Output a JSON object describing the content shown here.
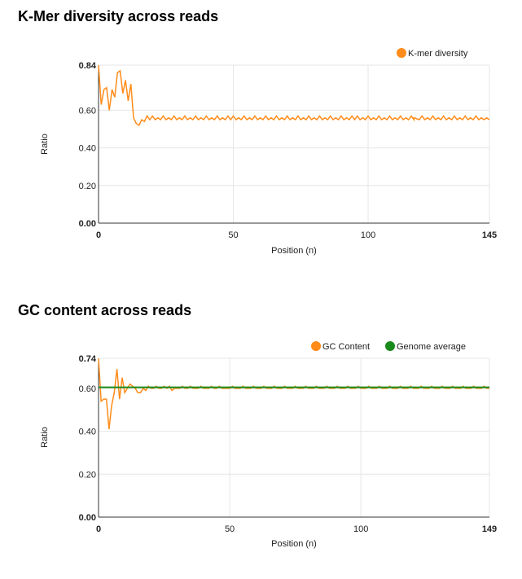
{
  "chart_data": [
    {
      "type": "line",
      "title": "K-Mer diversity across reads",
      "xlabel": "Position (n)",
      "ylabel": "Ratio",
      "xlim": [
        0,
        145
      ],
      "ylim": [
        0,
        0.84
      ],
      "x_ticks": [
        "0",
        "50",
        "100",
        "145"
      ],
      "y_ticks": [
        "0.84",
        "0.60",
        "0.40",
        "0.20",
        "0.00"
      ],
      "grid": true,
      "legend_position": "top-right",
      "series": [
        {
          "name": "K-mer diversity",
          "color": "#ff8c1a",
          "x": [
            0,
            1,
            2,
            3,
            4,
            5,
            6,
            7,
            8,
            9,
            10,
            11,
            12,
            13,
            14,
            15,
            16,
            17,
            18,
            19,
            20,
            21,
            22,
            23,
            24,
            25,
            26,
            27,
            28,
            29,
            30,
            31,
            32,
            33,
            34,
            35,
            36,
            37,
            38,
            39,
            40,
            41,
            42,
            43,
            44,
            45,
            46,
            47,
            48,
            49,
            50,
            51,
            52,
            53,
            54,
            55,
            56,
            57,
            58,
            59,
            60,
            61,
            62,
            63,
            64,
            65,
            66,
            67,
            68,
            69,
            70,
            71,
            72,
            73,
            74,
            75,
            76,
            77,
            78,
            79,
            80,
            81,
            82,
            83,
            84,
            85,
            86,
            87,
            88,
            89,
            90,
            91,
            92,
            93,
            94,
            95,
            96,
            97,
            98,
            99,
            100,
            101,
            102,
            103,
            104,
            105,
            106,
            107,
            108,
            109,
            110,
            111,
            112,
            113,
            114,
            115,
            116,
            117,
            117,
            119,
            120,
            121,
            122,
            123,
            124,
            125,
            126,
            127,
            128,
            129,
            130,
            131,
            132,
            133,
            134,
            135,
            136,
            137,
            138,
            139,
            140,
            141,
            142,
            143,
            144,
            145
          ],
          "values": [
            0.84,
            0.63,
            0.71,
            0.72,
            0.6,
            0.71,
            0.67,
            0.8,
            0.81,
            0.69,
            0.76,
            0.65,
            0.74,
            0.56,
            0.53,
            0.52,
            0.55,
            0.54,
            0.57,
            0.55,
            0.57,
            0.55,
            0.56,
            0.55,
            0.57,
            0.55,
            0.56,
            0.55,
            0.57,
            0.55,
            0.56,
            0.55,
            0.57,
            0.55,
            0.56,
            0.55,
            0.57,
            0.55,
            0.56,
            0.55,
            0.57,
            0.55,
            0.56,
            0.55,
            0.57,
            0.55,
            0.56,
            0.55,
            0.57,
            0.55,
            0.57,
            0.55,
            0.56,
            0.55,
            0.57,
            0.55,
            0.56,
            0.55,
            0.57,
            0.55,
            0.56,
            0.55,
            0.57,
            0.55,
            0.56,
            0.55,
            0.57,
            0.55,
            0.56,
            0.55,
            0.57,
            0.55,
            0.56,
            0.55,
            0.57,
            0.55,
            0.56,
            0.55,
            0.57,
            0.55,
            0.56,
            0.55,
            0.57,
            0.55,
            0.56,
            0.55,
            0.57,
            0.55,
            0.56,
            0.55,
            0.57,
            0.55,
            0.56,
            0.55,
            0.57,
            0.55,
            0.57,
            0.55,
            0.56,
            0.55,
            0.57,
            0.55,
            0.56,
            0.55,
            0.57,
            0.55,
            0.56,
            0.55,
            0.57,
            0.55,
            0.56,
            0.55,
            0.57,
            0.55,
            0.56,
            0.55,
            0.57,
            0.55,
            0.56,
            0.55,
            0.57,
            0.55,
            0.56,
            0.55,
            0.57,
            0.55,
            0.56,
            0.55,
            0.57,
            0.55,
            0.56,
            0.55,
            0.57,
            0.55,
            0.56,
            0.55,
            0.57,
            0.55,
            0.56,
            0.55,
            0.57,
            0.55,
            0.56,
            0.55,
            0.56,
            0.55
          ]
        }
      ]
    },
    {
      "type": "line",
      "title": "GC content across reads",
      "xlabel": "Position (n)",
      "ylabel": "Ratio",
      "xlim": [
        0,
        149
      ],
      "ylim": [
        0,
        0.74
      ],
      "x_ticks": [
        "0",
        "50",
        "100",
        "149"
      ],
      "y_ticks": [
        "0.74",
        "0.60",
        "0.40",
        "0.20",
        "0.00"
      ],
      "grid": true,
      "legend_position": "top-right",
      "series": [
        {
          "name": "GC Content",
          "color": "#ff8c1a",
          "x": [
            0,
            1,
            2,
            3,
            4,
            5,
            6,
            7,
            8,
            9,
            10,
            11,
            12,
            13,
            14,
            15,
            16,
            17,
            18,
            19,
            20,
            21,
            22,
            23,
            24,
            25,
            26,
            27,
            28,
            29,
            30,
            31,
            32,
            33,
            34,
            35,
            36,
            37,
            38,
            39,
            40,
            41,
            42,
            43,
            44,
            45,
            46,
            47,
            48,
            49,
            50,
            51,
            52,
            53,
            54,
            55,
            56,
            57,
            58,
            59,
            60,
            61,
            62,
            63,
            64,
            65,
            66,
            67,
            68,
            69,
            70,
            71,
            72,
            73,
            74,
            75,
            76,
            77,
            78,
            79,
            80,
            81,
            82,
            83,
            84,
            85,
            86,
            87,
            88,
            89,
            90,
            91,
            92,
            93,
            94,
            95,
            96,
            97,
            98,
            99,
            100,
            101,
            102,
            103,
            104,
            105,
            106,
            107,
            108,
            109,
            110,
            111,
            112,
            113,
            114,
            115,
            116,
            117,
            118,
            119,
            120,
            121,
            122,
            123,
            124,
            125,
            126,
            127,
            128,
            129,
            130,
            131,
            132,
            133,
            134,
            135,
            136,
            137,
            138,
            139,
            140,
            141,
            142,
            143,
            144,
            145,
            146,
            147,
            148,
            149
          ],
          "values": [
            0.74,
            0.54,
            0.55,
            0.55,
            0.41,
            0.52,
            0.58,
            0.69,
            0.55,
            0.65,
            0.58,
            0.6,
            0.62,
            0.61,
            0.6,
            0.58,
            0.58,
            0.6,
            0.59,
            0.61,
            0.6,
            0.6,
            0.61,
            0.6,
            0.6,
            0.61,
            0.6,
            0.61,
            0.59,
            0.6,
            0.6,
            0.6,
            0.61,
            0.6,
            0.6,
            0.61,
            0.6,
            0.6,
            0.6,
            0.61,
            0.6,
            0.6,
            0.6,
            0.61,
            0.6,
            0.6,
            0.61,
            0.6,
            0.6,
            0.6,
            0.6,
            0.61,
            0.6,
            0.6,
            0.6,
            0.61,
            0.6,
            0.6,
            0.6,
            0.61,
            0.6,
            0.6,
            0.6,
            0.61,
            0.6,
            0.6,
            0.6,
            0.61,
            0.6,
            0.6,
            0.6,
            0.61,
            0.6,
            0.6,
            0.6,
            0.61,
            0.6,
            0.6,
            0.6,
            0.61,
            0.6,
            0.6,
            0.6,
            0.61,
            0.6,
            0.6,
            0.6,
            0.61,
            0.6,
            0.6,
            0.6,
            0.61,
            0.6,
            0.6,
            0.6,
            0.61,
            0.6,
            0.6,
            0.6,
            0.61,
            0.6,
            0.6,
            0.6,
            0.61,
            0.6,
            0.6,
            0.6,
            0.61,
            0.6,
            0.6,
            0.6,
            0.61,
            0.6,
            0.6,
            0.6,
            0.61,
            0.6,
            0.6,
            0.6,
            0.61,
            0.6,
            0.6,
            0.6,
            0.61,
            0.6,
            0.6,
            0.6,
            0.61,
            0.6,
            0.6,
            0.6,
            0.61,
            0.6,
            0.6,
            0.6,
            0.61,
            0.6,
            0.6,
            0.6,
            0.61,
            0.6,
            0.6,
            0.6,
            0.61,
            0.6,
            0.6,
            0.6,
            0.61,
            0.6,
            0.6
          ]
        },
        {
          "name": "Genome average",
          "color": "#1a8a1a",
          "x": [
            0,
            149
          ],
          "values": [
            0.605,
            0.605
          ]
        }
      ]
    }
  ]
}
